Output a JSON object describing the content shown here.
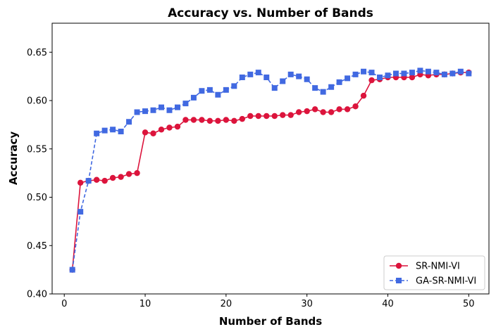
{
  "chart_data": {
    "type": "line",
    "title": "Accuracy vs. Number of Bands",
    "xlabel": "Number of Bands",
    "ylabel": "Accuracy",
    "xlim": [
      -1.5,
      52.5
    ],
    "ylim": [
      0.4,
      0.68
    ],
    "xticks": [
      0,
      10,
      20,
      30,
      40,
      50
    ],
    "yticks": [
      0.4,
      0.45,
      0.5,
      0.55,
      0.6,
      0.65
    ],
    "ytick_labels": [
      "0.40",
      "0.45",
      "0.50",
      "0.55",
      "0.60",
      "0.65"
    ],
    "grid": false,
    "legend_position": "lower-right",
    "x": [
      1,
      2,
      3,
      4,
      5,
      6,
      7,
      8,
      9,
      10,
      11,
      12,
      13,
      14,
      15,
      16,
      17,
      18,
      19,
      20,
      21,
      22,
      23,
      24,
      25,
      26,
      27,
      28,
      29,
      30,
      31,
      32,
      33,
      34,
      35,
      36,
      37,
      38,
      39,
      40,
      41,
      42,
      43,
      44,
      45,
      46,
      47,
      48,
      49,
      50
    ],
    "series": [
      {
        "name": "SR-NMI-VI",
        "color": "#dc143c",
        "line_style": "solid",
        "marker": "circle",
        "values": [
          0.425,
          0.515,
          0.517,
          0.518,
          0.517,
          0.52,
          0.521,
          0.524,
          0.525,
          0.567,
          0.566,
          0.57,
          0.572,
          0.573,
          0.58,
          0.58,
          0.58,
          0.579,
          0.579,
          0.58,
          0.579,
          0.581,
          0.584,
          0.584,
          0.584,
          0.584,
          0.585,
          0.585,
          0.588,
          0.589,
          0.591,
          0.588,
          0.588,
          0.591,
          0.591,
          0.594,
          0.605,
          0.621,
          0.622,
          0.624,
          0.624,
          0.624,
          0.624,
          0.627,
          0.626,
          0.627,
          0.627,
          0.628,
          0.629,
          0.629
        ]
      },
      {
        "name": "GA-SR-NMI-VI",
        "color": "#4169e1",
        "line_style": "dashed",
        "marker": "square",
        "values": [
          0.425,
          0.485,
          0.517,
          0.566,
          0.569,
          0.57,
          0.568,
          0.578,
          0.588,
          0.589,
          0.59,
          0.593,
          0.59,
          0.593,
          0.597,
          0.603,
          0.61,
          0.611,
          0.606,
          0.611,
          0.615,
          0.624,
          0.627,
          0.629,
          0.624,
          0.613,
          0.62,
          0.627,
          0.625,
          0.622,
          0.613,
          0.609,
          0.614,
          0.619,
          0.623,
          0.627,
          0.63,
          0.629,
          0.624,
          0.626,
          0.628,
          0.628,
          0.629,
          0.631,
          0.63,
          0.629,
          0.627,
          0.628,
          0.63,
          0.628
        ]
      }
    ]
  }
}
